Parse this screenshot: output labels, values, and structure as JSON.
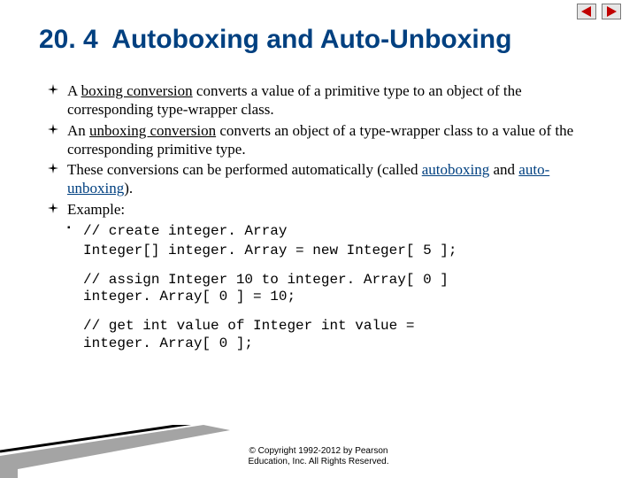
{
  "nav": {
    "prev_icon_color": "#c00000",
    "next_icon_color": "#c00000",
    "icon_border": "#7a7a7a",
    "icon_bg": "#e6e6e6"
  },
  "title": {
    "section_no": "20. 4",
    "text": "Autoboxing and Auto-Unboxing",
    "color": "#004080",
    "fontsize": 30
  },
  "bullets": [
    {
      "parts": [
        {
          "t": "A "
        },
        {
          "t": "boxing conversion",
          "u": true
        },
        {
          "t": " converts a value of a primitive type to an object of the corresponding type-wrapper class."
        }
      ]
    },
    {
      "parts": [
        {
          "t": "An "
        },
        {
          "t": "unboxing conversion",
          "u": true
        },
        {
          "t": " converts an object of a type-wrapper class to a value of the corresponding primitive type."
        }
      ]
    },
    {
      "parts": [
        {
          "t": "These conversions can be performed automatically (called "
        },
        {
          "t": "autoboxing",
          "u": true,
          "kw": true
        },
        {
          "t": " and "
        },
        {
          "t": "auto-unboxing",
          "u": true,
          "kw": true
        },
        {
          "t": ")."
        }
      ]
    },
    {
      "parts": [
        {
          "t": "Example:"
        }
      ],
      "has_sub": true
    }
  ],
  "sub_bullet_label": "// create integer. Array",
  "code_line1": "Integer[] integer. Array = new Integer[ 5 ];",
  "code_block1_comment": "// assign Integer 10 to integer. Array[ 0 ]",
  "code_block1_code": "integer. Array[ 0 ] = 10;",
  "code_block2_line1": "// get int value of Integer int value =",
  "code_block2_line2": "integer. Array[ 0 ];",
  "copyright_l1": "© Copyright 1992-2012 by Pearson",
  "copyright_l2": "Education, Inc. All Rights Reserved.",
  "deco": {
    "line1": "#000000",
    "fill": "#5a5a5a"
  }
}
